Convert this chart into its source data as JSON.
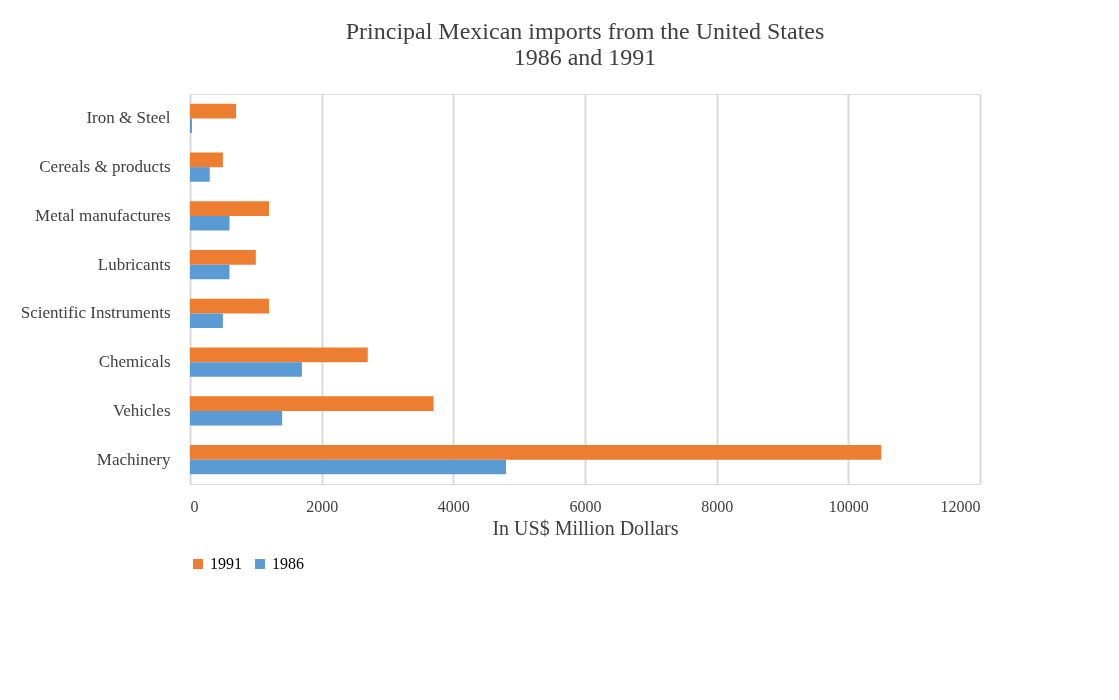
{
  "chart_data": {
    "type": "bar",
    "orientation": "horizontal",
    "title": "Principal Mexican imports from the United States\n1986 and 1991",
    "xlabel": "In US$ Million Dollars",
    "categories": [
      "Iron & Steel",
      "Cereals & products",
      "Metal manufactures",
      "Lubricants",
      "Scientific Instruments",
      "Chemicals",
      "Vehicles",
      "Machinery"
    ],
    "series": [
      {
        "name": "1991",
        "color": "#ed7d31",
        "values": [
          700,
          500,
          1200,
          1000,
          1200,
          2700,
          3700,
          10500
        ]
      },
      {
        "name": "1986",
        "color": "#5b9bd5",
        "values": [
          30,
          300,
          600,
          600,
          500,
          1700,
          1400,
          4800
        ]
      }
    ],
    "xlim": [
      0,
      12000
    ],
    "xticks": [
      0,
      2000,
      4000,
      6000,
      8000,
      10000,
      12000
    ],
    "grid": "x",
    "legend": "bottom"
  }
}
